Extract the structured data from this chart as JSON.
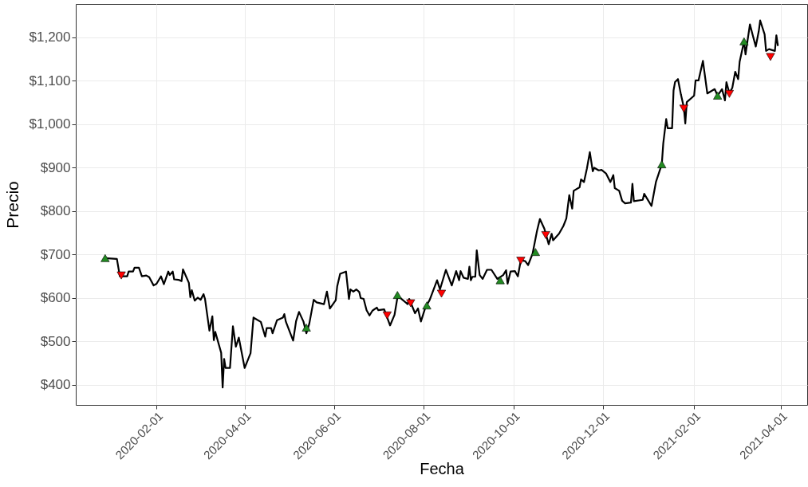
{
  "chart_data": {
    "type": "line",
    "xlabel": "Fecha",
    "ylabel": "Precio",
    "xlim": [
      "2019-12-08",
      "2021-04-19"
    ],
    "xticks": [
      "2020-02-01",
      "2020-04-01",
      "2020-06-01",
      "2020-08-01",
      "2020-10-01",
      "2020-12-01",
      "2021-02-01",
      "2021-04-01"
    ],
    "ylim": [
      354,
      1277
    ],
    "yticks": [
      {
        "value": 400,
        "label": "$400"
      },
      {
        "value": 500,
        "label": "$500"
      },
      {
        "value": 600,
        "label": "$600"
      },
      {
        "value": 700,
        "label": "$700"
      },
      {
        "value": 800,
        "label": "$800"
      },
      {
        "value": 900,
        "label": "$900"
      },
      {
        "value": 1000,
        "label": "$1,000"
      },
      {
        "value": 1100,
        "label": "$1,100"
      },
      {
        "value": 1200,
        "label": "$1,200"
      }
    ],
    "grid": true,
    "series": [
      {
        "type": "line",
        "color": "#000000",
        "line_style": "solid",
        "x": [
          "2019-12-28",
          "2020-01-05",
          "2020-01-07",
          "2020-01-12",
          "2020-01-13",
          "2020-01-16",
          "2020-01-17",
          "2020-01-20",
          "2020-01-22",
          "2020-01-25",
          "2020-01-27",
          "2020-01-30",
          "2020-02-01",
          "2020-02-04",
          "2020-02-06",
          "2020-02-09",
          "2020-02-10",
          "2020-02-12",
          "2020-02-13",
          "2020-02-16",
          "2020-02-18",
          "2020-02-19",
          "2020-02-23",
          "2020-02-24",
          "2020-02-25",
          "2020-02-27",
          "2020-02-29",
          "2020-03-02",
          "2020-03-04",
          "2020-03-05",
          "2020-03-08",
          "2020-03-10",
          "2020-03-11",
          "2020-03-12",
          "2020-03-16",
          "2020-03-17",
          "2020-03-18",
          "2020-03-19",
          "2020-03-22",
          "2020-03-24",
          "2020-03-26",
          "2020-03-28",
          "2020-04-01",
          "2020-04-05",
          "2020-04-07",
          "2020-04-12",
          "2020-04-15",
          "2020-04-16",
          "2020-04-19",
          "2020-04-20",
          "2020-04-23",
          "2020-04-27",
          "2020-04-28",
          "2020-04-29",
          "2020-05-04",
          "2020-05-06",
          "2020-05-08",
          "2020-05-11",
          "2020-05-13",
          "2020-05-15",
          "2020-05-18",
          "2020-05-20",
          "2020-05-25",
          "2020-05-27",
          "2020-05-29",
          "2020-06-02",
          "2020-06-03",
          "2020-06-05",
          "2020-06-09",
          "2020-06-11",
          "2020-06-12",
          "2020-06-14",
          "2020-06-16",
          "2020-06-18",
          "2020-06-19",
          "2020-06-21",
          "2020-06-23",
          "2020-06-25",
          "2020-06-27",
          "2020-06-30",
          "2020-07-01",
          "2020-07-05",
          "2020-07-09",
          "2020-07-12",
          "2020-07-14",
          "2020-07-16",
          "2020-07-21",
          "2020-07-22",
          "2020-07-26",
          "2020-07-28",
          "2020-07-30",
          "2020-08-02",
          "2020-08-05",
          "2020-08-10",
          "2020-08-12",
          "2020-08-16",
          "2020-08-20",
          "2020-08-23",
          "2020-08-25",
          "2020-08-26",
          "2020-08-28",
          "2020-08-31",
          "2020-09-01",
          "2020-09-02",
          "2020-09-03",
          "2020-09-05",
          "2020-09-06",
          "2020-09-08",
          "2020-09-10",
          "2020-09-13",
          "2020-09-16",
          "2020-09-20",
          "2020-09-24",
          "2020-09-26",
          "2020-09-27",
          "2020-09-29",
          "2020-10-02",
          "2020-10-04",
          "2020-10-06",
          "2020-10-09",
          "2020-10-11",
          "2020-10-14",
          "2020-10-17",
          "2020-10-19",
          "2020-10-22",
          "2020-10-25",
          "2020-10-27",
          "2020-10-28",
          "2020-11-01",
          "2020-11-04",
          "2020-11-06",
          "2020-11-08",
          "2020-11-10",
          "2020-11-11",
          "2020-11-15",
          "2020-11-16",
          "2020-11-18",
          "2020-11-20",
          "2020-11-22",
          "2020-11-24",
          "2020-11-25",
          "2020-11-28",
          "2020-11-30",
          "2020-12-03",
          "2020-12-06",
          "2020-12-08",
          "2020-12-09",
          "2020-12-12",
          "2020-12-14",
          "2020-12-16",
          "2020-12-20",
          "2020-12-21",
          "2020-12-22",
          "2020-12-28",
          "2020-12-29",
          "2021-01-03",
          "2021-01-06",
          "2021-01-10",
          "2021-01-11",
          "2021-01-13",
          "2021-01-14",
          "2021-01-17",
          "2021-01-18",
          "2021-01-19",
          "2021-01-21",
          "2021-01-23",
          "2021-01-25",
          "2021-01-26",
          "2021-01-27",
          "2021-02-01",
          "2021-02-02",
          "2021-02-04",
          "2021-02-07",
          "2021-02-10",
          "2021-02-15",
          "2021-02-17",
          "2021-02-20",
          "2021-02-22",
          "2021-02-23",
          "2021-02-25",
          "2021-02-27",
          "2021-03-01",
          "2021-03-03",
          "2021-03-04",
          "2021-03-07",
          "2021-03-08",
          "2021-03-11",
          "2021-03-13",
          "2021-03-15",
          "2021-03-17",
          "2021-03-18",
          "2021-03-21",
          "2021-03-22",
          "2021-03-24",
          "2021-03-28",
          "2021-03-29",
          "2021-03-30"
        ],
        "values": [
          692,
          690,
          650,
          650,
          661,
          661,
          670,
          670,
          650,
          652,
          648,
          629,
          633,
          650,
          632,
          661,
          653,
          661,
          643,
          642,
          639,
          666,
          635,
          602,
          618,
          594,
          601,
          596,
          609,
          598,
          525,
          558,
          503,
          522,
          474,
          394,
          460,
          439,
          439,
          535,
          488,
          509,
          439,
          473,
          555,
          545,
          511,
          531,
          531,
          519,
          549,
          555,
          563,
          546,
          502,
          547,
          568,
          546,
          519,
          541,
          596,
          590,
          586,
          615,
          576,
          595,
          627,
          656,
          661,
          598,
          620,
          615,
          620,
          614,
          600,
          598,
          572,
          560,
          571,
          578,
          572,
          574,
          537,
          561,
          601,
          600,
          586,
          598,
          565,
          576,
          546,
          578,
          596,
          641,
          620,
          665,
          629,
          662,
          641,
          662,
          647,
          644,
          672,
          641,
          649,
          649,
          710,
          653,
          644,
          665,
          665,
          644,
          653,
          664,
          633,
          661,
          662,
          650,
          687,
          685,
          676,
          702,
          754,
          782,
          760,
          724,
          748,
          733,
          748,
          766,
          783,
          837,
          806,
          847,
          855,
          873,
          867,
          898,
          936,
          892,
          900,
          894,
          895,
          887,
          867,
          883,
          853,
          847,
          824,
          818,
          820,
          863,
          823,
          826,
          840,
          812,
          867,
          908,
          956,
          1012,
          991,
          991,
          1078,
          1097,
          1104,
          1069,
          1039,
          1002,
          1051,
          1066,
          1101,
          1101,
          1146,
          1071,
          1081,
          1066,
          1081,
          1055,
          1097,
          1072,
          1084,
          1121,
          1104,
          1144,
          1191,
          1161,
          1230,
          1204,
          1179,
          1214,
          1239,
          1207,
          1169,
          1173,
          1169,
          1205,
          1182
        ]
      },
      {
        "type": "scatter",
        "color": "#228b22",
        "marker": "triangle",
        "x": [
          "2019-12-28",
          "2020-05-13",
          "2020-07-14",
          "2020-08-03",
          "2020-09-22",
          "2020-10-16",
          "2021-01-10",
          "2021-02-17",
          "2021-03-07"
        ],
        "values": [
          692,
          532,
          607,
          583,
          641,
          706,
          908,
          1066,
          1191
        ]
      },
      {
        "type": "scatter",
        "color": "#ff0000",
        "marker": "triangle-down",
        "x": [
          "2020-01-08",
          "2020-07-07",
          "2020-07-23",
          "2020-08-13",
          "2020-10-06",
          "2020-10-23",
          "2021-01-25",
          "2021-02-25",
          "2021-03-25"
        ],
        "values": [
          652,
          560,
          588,
          610,
          686,
          745,
          1036,
          1070,
          1155
        ]
      }
    ]
  }
}
